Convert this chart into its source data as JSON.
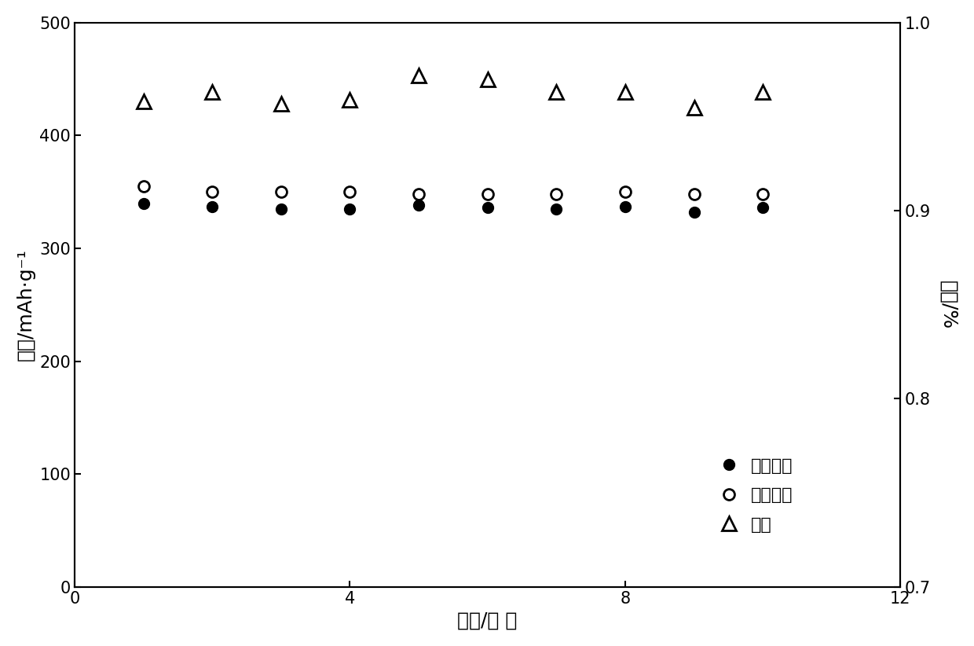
{
  "cycles": [
    1,
    2,
    3,
    4,
    5,
    6,
    7,
    8,
    9,
    10
  ],
  "discharge_capacity": [
    340,
    337,
    335,
    335,
    338,
    336,
    335,
    337,
    332,
    336
  ],
  "charge_capacity": [
    355,
    350,
    350,
    350,
    348,
    348,
    348,
    350,
    348,
    348
  ],
  "efficiency": [
    0.958,
    0.963,
    0.957,
    0.959,
    0.972,
    0.97,
    0.963,
    0.963,
    0.955,
    0.963
  ],
  "xlabel": "循环/次 数",
  "ylabel_left": "容量/mAh·g⁻¹",
  "ylabel_right": "效率/%",
  "legend_discharge": "放电容量",
  "legend_charge": "充电容量",
  "legend_efficiency": "效率",
  "xlim": [
    0,
    12
  ],
  "ylim_left": [
    0,
    500
  ],
  "ylim_right": [
    0.7,
    1.0
  ],
  "xticks": [
    0,
    4,
    8,
    12
  ],
  "yticks_left": [
    0,
    100,
    200,
    300,
    400,
    500
  ],
  "yticks_right": [
    0.7,
    0.8,
    0.9,
    1.0
  ],
  "marker_size": 10,
  "fontsize_label": 18,
  "fontsize_tick": 15,
  "fontsize_legend": 16
}
